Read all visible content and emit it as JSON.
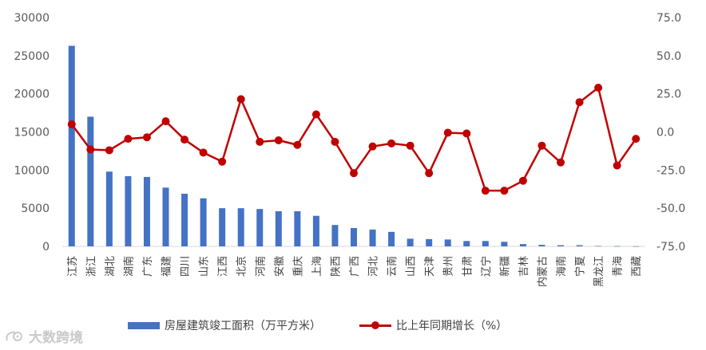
{
  "chart_data": {
    "type": "bar+line",
    "categories": [
      "江苏",
      "浙江",
      "湖北",
      "湖南",
      "广东",
      "福建",
      "四川",
      "山东",
      "江西",
      "北京",
      "河南",
      "安徽",
      "重庆",
      "上海",
      "陕西",
      "广西",
      "河北",
      "云南",
      "山西",
      "天津",
      "贵州",
      "甘肃",
      "辽宁",
      "新疆",
      "吉林",
      "内蒙古",
      "海南",
      "宁夏",
      "黑龙江",
      "青海",
      "西藏"
    ],
    "series": [
      {
        "name": "房屋建筑竣工面积（万平方米）",
        "axis": "left",
        "kind": "bar",
        "color": "#4472C4",
        "values": [
          26300,
          17000,
          9800,
          9200,
          9100,
          7700,
          6900,
          6300,
          5000,
          5000,
          4900,
          4600,
          4600,
          4000,
          2800,
          2400,
          2200,
          1900,
          1000,
          950,
          900,
          700,
          700,
          600,
          300,
          200,
          150,
          150,
          50,
          30,
          20
        ]
      },
      {
        "name": "比上年同期增长（%）",
        "axis": "right",
        "kind": "line",
        "color": "#C00000",
        "values": [
          5.0,
          -11.5,
          -12.0,
          -4.5,
          -3.5,
          7.0,
          -5.0,
          -13.5,
          -19.5,
          21.5,
          -6.5,
          -5.5,
          -8.5,
          11.5,
          -6.5,
          -27.0,
          -9.5,
          -7.5,
          -9.0,
          -27.0,
          -0.5,
          -1.0,
          -38.5,
          -38.5,
          -32.0,
          -9.0,
          -20.0,
          19.5,
          29.0,
          -22.0,
          -4.5
        ]
      }
    ],
    "y_left": {
      "min": 0,
      "max": 30000,
      "ticks": [
        "0",
        "5000",
        "10000",
        "15000",
        "20000",
        "25000",
        "30000"
      ]
    },
    "y_right": {
      "min": -75,
      "max": 75,
      "ticks": [
        "-75.0",
        "-50.0",
        "-25.0",
        "0.0",
        "25.0",
        "50.0",
        "75.0"
      ]
    },
    "grid": false,
    "legend_position": "bottom"
  },
  "legend": {
    "bar_label": "房屋建筑竣工面积（万平方米）",
    "line_label": "比上年同期增长（%）"
  },
  "watermark": {
    "text": "大数跨境"
  }
}
